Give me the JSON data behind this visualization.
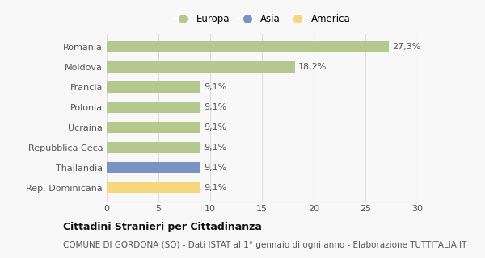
{
  "categories": [
    "Rep. Dominicana",
    "Thailandia",
    "Repubblica Ceca",
    "Ucraina",
    "Polonia",
    "Francia",
    "Moldova",
    "Romania"
  ],
  "values": [
    9.1,
    9.1,
    9.1,
    9.1,
    9.1,
    9.1,
    18.2,
    27.3
  ],
  "labels": [
    "9,1%",
    "9,1%",
    "9,1%",
    "9,1%",
    "9,1%",
    "9,1%",
    "18,2%",
    "27,3%"
  ],
  "bar_colors": [
    "#f5d87e",
    "#7b93c4",
    "#b5c98e",
    "#b5c98e",
    "#b5c98e",
    "#b5c98e",
    "#b5c98e",
    "#b5c98e"
  ],
  "legend_items": [
    {
      "label": "Europa",
      "color": "#b5c98e"
    },
    {
      "label": "Asia",
      "color": "#7b93c4"
    },
    {
      "label": "America",
      "color": "#f5d87e"
    }
  ],
  "xlim": [
    0,
    30
  ],
  "xticks": [
    0,
    5,
    10,
    15,
    20,
    25,
    30
  ],
  "title": "Cittadini Stranieri per Cittadinanza",
  "subtitle": "COMUNE DI GORDONA (SO) - Dati ISTAT al 1° gennaio di ogni anno - Elaborazione TUTTITALIA.IT",
  "background_color": "#f8f8f8",
  "grid_color": "#dddddd",
  "bar_height": 0.55,
  "label_fontsize": 8,
  "tick_fontsize": 8,
  "title_fontsize": 9,
  "subtitle_fontsize": 7.5
}
